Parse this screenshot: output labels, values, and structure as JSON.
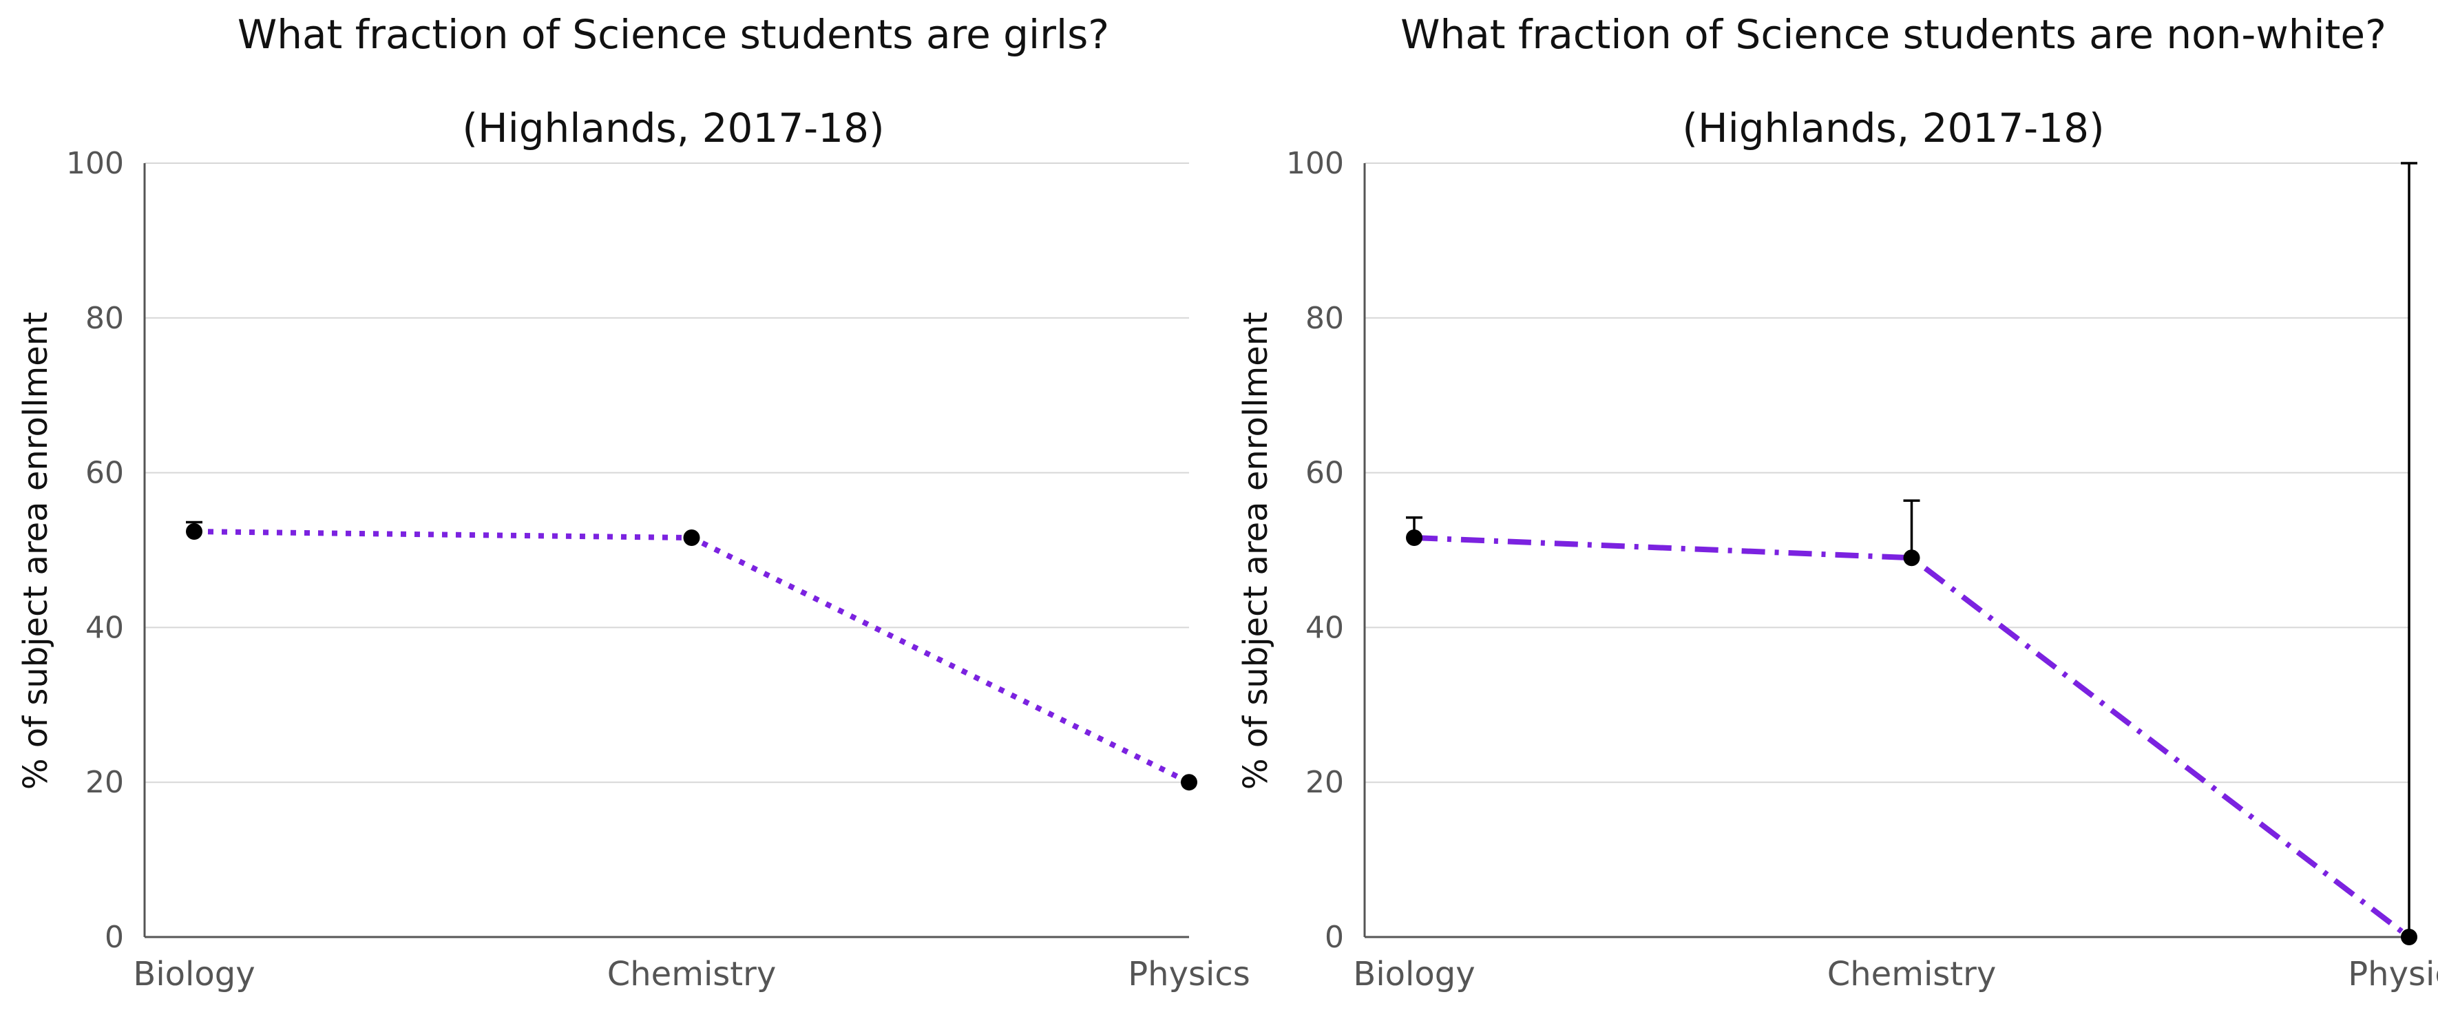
{
  "chart_data": [
    {
      "type": "line",
      "title": "What fraction of Science students are girls?",
      "subtitle": "(Highlands, 2017-18)",
      "xlabel": "",
      "ylabel": "% of subject area enrollment",
      "categories": [
        "Biology",
        "Chemistry",
        "Physics"
      ],
      "ylim": [
        0,
        100
      ],
      "yticks": [
        0,
        20,
        40,
        60,
        80,
        100
      ],
      "grid": true,
      "line_style": "dotted",
      "line_color": "#7b22e0",
      "marker_color": "#000000",
      "series": [
        {
          "values": [
            52.4,
            51.6,
            20.0
          ],
          "error_upper": [
            53.6,
            51.6,
            20.0
          ]
        }
      ]
    },
    {
      "type": "line",
      "title": "What fraction of Science students are non-white?",
      "subtitle": "(Highlands, 2017-18)",
      "xlabel": "",
      "ylabel": "% of subject area enrollment",
      "categories": [
        "Biology",
        "Chemistry",
        "Physics"
      ],
      "ylim": [
        0,
        100
      ],
      "yticks": [
        0,
        20,
        40,
        60,
        80,
        100
      ],
      "grid": true,
      "line_style": "dashdot",
      "line_color": "#7b22e0",
      "marker_color": "#000000",
      "series": [
        {
          "values": [
            51.6,
            49.0,
            0.0
          ],
          "error_upper": [
            54.2,
            56.4,
            100.0
          ]
        }
      ]
    }
  ]
}
